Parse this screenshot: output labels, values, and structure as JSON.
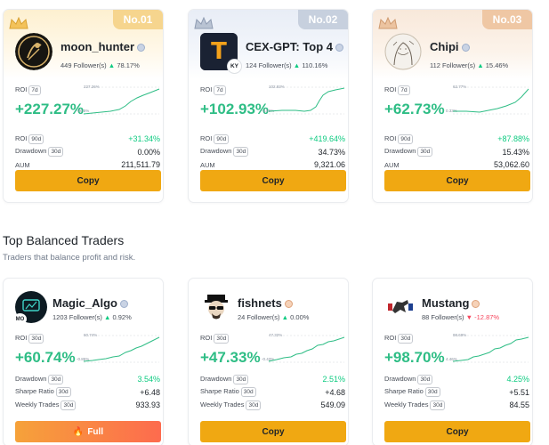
{
  "top_traders": [
    {
      "rank": "No.01",
      "name": "moon_hunter",
      "followers": "449 Follower(s)",
      "follow_change": "78.17%",
      "roi_label": "ROI",
      "roi_period": "7d",
      "roi": "+227.27%",
      "spark_max": "227.26%",
      "spark_min": "-20.5%",
      "stats": [
        {
          "label": "ROI",
          "period": "90d",
          "value": "+31.34%",
          "positive": true
        },
        {
          "label": "Drawdown",
          "period": "30d",
          "value": "0.00%",
          "positive": false
        },
        {
          "label": "AUM",
          "period": "",
          "value": "211,511.79",
          "positive": false
        }
      ],
      "button": "Copy"
    },
    {
      "rank": "No.02",
      "name": "CEX-GPT: Top 4",
      "followers": "124 Follower(s)",
      "follow_change": "110.16%",
      "roi_label": "ROI",
      "roi_period": "7d",
      "roi": "+102.93%",
      "spark_max": "102.93%",
      "spark_min": "-3.86%",
      "stats": [
        {
          "label": "ROI",
          "period": "90d",
          "value": "+419.64%",
          "positive": true
        },
        {
          "label": "Drawdown",
          "period": "30d",
          "value": "34.73%",
          "positive": false
        },
        {
          "label": "AUM",
          "period": "",
          "value": "9,321.06",
          "positive": false
        }
      ],
      "button": "Copy",
      "avatar_text": "T",
      "avatar_badge": "KY"
    },
    {
      "rank": "No.03",
      "name": "Chipi",
      "followers": "112 Follower(s)",
      "follow_change": "15.46%",
      "roi_label": "ROI",
      "roi_period": "7d",
      "roi": "+62.73%",
      "spark_max": "62.77%",
      "spark_min": "0.33%",
      "stats": [
        {
          "label": "ROI",
          "period": "90d",
          "value": "+87.88%",
          "positive": true
        },
        {
          "label": "Drawdown",
          "period": "30d",
          "value": "15.43%",
          "positive": false
        },
        {
          "label": "AUM",
          "period": "",
          "value": "53,062.60",
          "positive": false
        }
      ],
      "button": "Copy"
    }
  ],
  "section": {
    "title": "Top Balanced Traders",
    "subtitle": "Traders that balance profit and risk."
  },
  "balanced_traders": [
    {
      "name": "Magic_Algo",
      "followers": "1203 Follower(s)",
      "follow_change": "0.92%",
      "follow_dir": "up",
      "roi_label": "ROI",
      "roi_period": "30d",
      "roi": "+60.74%",
      "spark_max": "60.74%",
      "spark_min": "-0.85%",
      "stats": [
        {
          "label": "Drawdown",
          "period": "30d",
          "value": "3.54%",
          "positive": true
        },
        {
          "label": "Sharpe Ratio",
          "period": "30d",
          "value": "+6.48",
          "positive": false
        },
        {
          "label": "Weekly Trades",
          "period": "30d",
          "value": "933.93",
          "positive": false
        }
      ],
      "button": "Full",
      "avatar_badge": "MO"
    },
    {
      "name": "fishnets",
      "followers": "24 Follower(s)",
      "follow_change": "0.00%",
      "follow_dir": "up",
      "roi_label": "ROI",
      "roi_period": "30d",
      "roi": "+47.33%",
      "spark_max": "47.32%",
      "spark_min": "-0.43%",
      "stats": [
        {
          "label": "Drawdown",
          "period": "30d",
          "value": "2.51%",
          "positive": true
        },
        {
          "label": "Sharpe Ratio",
          "period": "30d",
          "value": "+4.68",
          "positive": false
        },
        {
          "label": "Weekly Trades",
          "period": "30d",
          "value": "549.09",
          "positive": false
        }
      ],
      "button": "Copy"
    },
    {
      "name": "Mustang",
      "followers": "88 Follower(s)",
      "follow_change": "-12.87%",
      "follow_dir": "down",
      "roi_label": "ROI",
      "roi_period": "30d",
      "roi": "+98.70%",
      "spark_max": "98.69%",
      "spark_min": "4.46%",
      "stats": [
        {
          "label": "Drawdown",
          "period": "30d",
          "value": "4.25%",
          "positive": true
        },
        {
          "label": "Sharpe Ratio",
          "period": "30d",
          "value": "+5.51",
          "positive": false
        },
        {
          "label": "Weekly Trades",
          "period": "30d",
          "value": "84.55",
          "positive": false
        }
      ],
      "button": "Copy"
    }
  ],
  "colors": {
    "accent": "#f0a812",
    "positive": "#0ecb81",
    "negative": "#f6465d",
    "full_gradient_start": "#f6a23a",
    "full_gradient_end": "#fd6b4e"
  }
}
